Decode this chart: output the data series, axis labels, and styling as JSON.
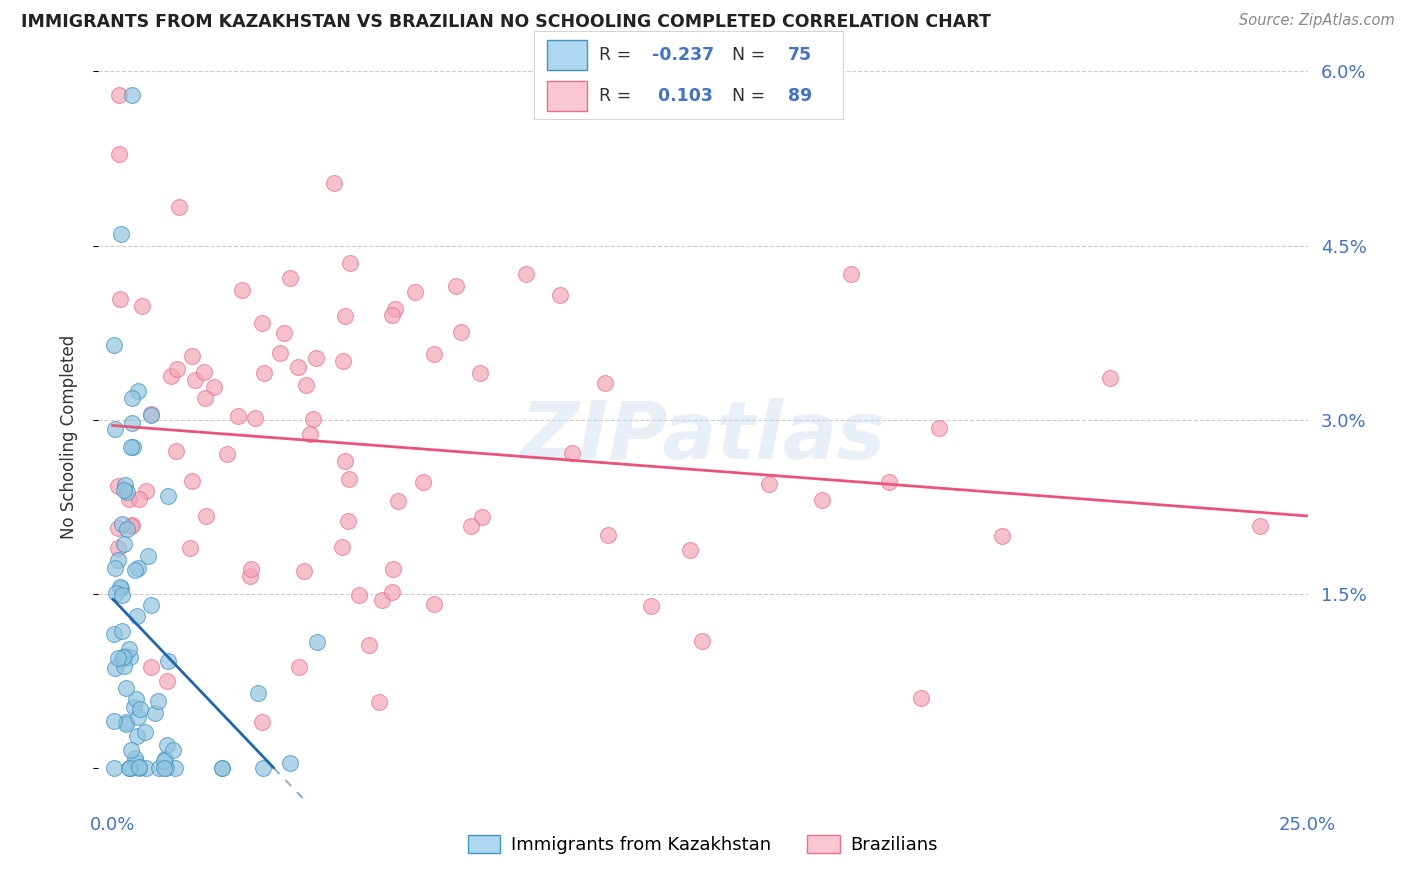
{
  "title": "IMMIGRANTS FROM KAZAKHSTAN VS BRAZILIAN NO SCHOOLING COMPLETED CORRELATION CHART",
  "source": "Source: ZipAtlas.com",
  "ylabel": "No Schooling Completed",
  "legend_label1": "Immigrants from Kazakhstan",
  "legend_label2": "Brazilians",
  "color_blue": "#92c5de",
  "color_pink": "#f4a6b8",
  "color_blue_edge": "#4393c3",
  "color_pink_edge": "#e8708a",
  "color_blue_line": "#2166ac",
  "color_pink_line": "#e8547a",
  "color_blue_legend_fill": "#add8f0",
  "color_pink_legend_fill": "#f9c6d2",
  "xlim": [
    0.0,
    0.25
  ],
  "ylim": [
    0.0,
    0.06
  ],
  "kaz_seed": 17,
  "braz_seed": 7
}
